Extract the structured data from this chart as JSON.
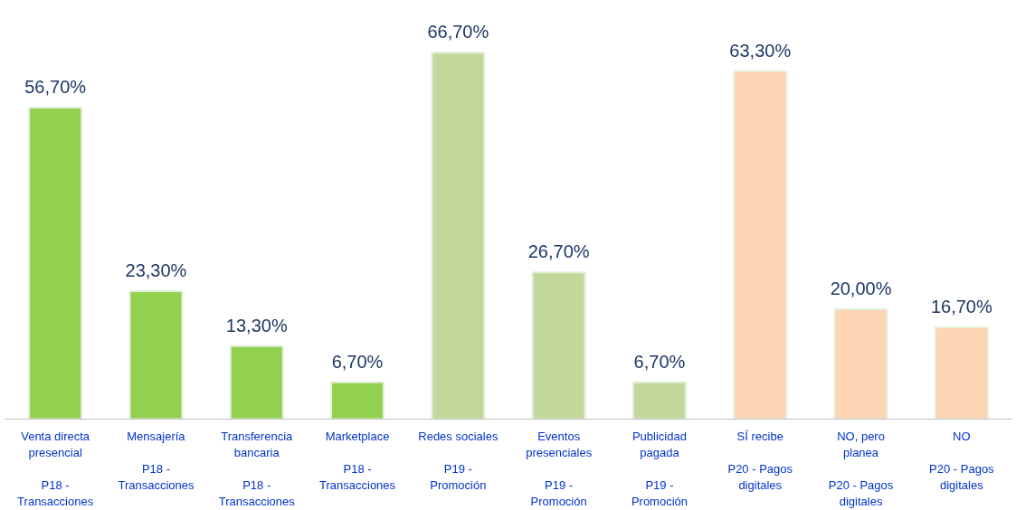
{
  "chart_data": {
    "type": "bar",
    "categories": [
      "Venta directa presencial\nP18 - Transacciones",
      "Mensajería\nP18 - Transacciones",
      "Transferencia bancaria\nP18 - Transacciones",
      "Marketplace\nP18 - Transacciones",
      "Redes sociales\nP19 - Promoción",
      "Eventos presenciales\nP19 - Promoción",
      "Publicidad pagada\nP19 - Promoción",
      "SÍ recibe\nP20 - Pagos digitales",
      "NO, pero planea\nP20 - Pagos digitales",
      "NO\nP20 - Pagos digitales"
    ],
    "values": [
      56.7,
      23.3,
      13.3,
      6.7,
      66.7,
      26.7,
      6.7,
      63.3,
      20.0,
      16.7
    ],
    "colors": [
      "#92d050",
      "#92d050",
      "#92d050",
      "#92d050",
      "#c4d79b",
      "#c4d79b",
      "#c4d79b",
      "#fcd5b4",
      "#fcd5b4",
      "#fcd5b4"
    ],
    "value_labels": [
      "56,70%",
      "23,30%",
      "13,30%",
      "6,70%",
      "66,70%",
      "26,70%",
      "6,70%",
      "63,30%",
      "20,00%",
      "16,70%"
    ]
  }
}
